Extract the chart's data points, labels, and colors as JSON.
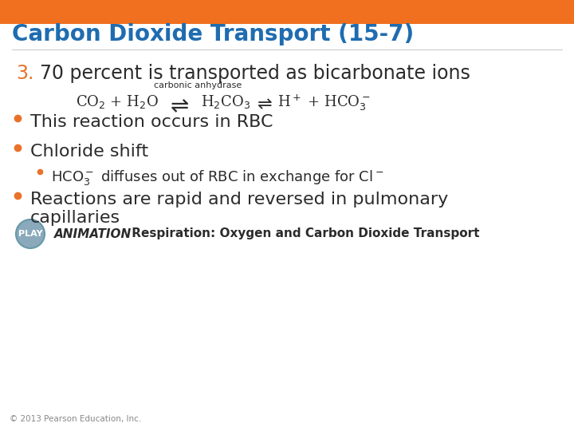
{
  "title": "Carbon Dioxide Transport (15-7)",
  "title_color": "#1F6CB0",
  "title_fontsize": 20,
  "header_bar_color": "#F07020",
  "background_color": "#FFFFFF",
  "number_color": "#E8722A",
  "bullet_color": "#E8722A",
  "text_color": "#2B2B2B",
  "item3_label": "3.",
  "item3_text": "70 percent is transported as bicarbonate ions",
  "bullet1": "This reaction occurs in RBC",
  "bullet2": "Chloride shift",
  "bullet3_line1": "Reactions are rapid and reversed in pulmonary",
  "bullet3_line2": "capillaries",
  "play_text": "PLAY",
  "animation_text": "ANIMATION",
  "animation_rest": " Respiration: Oxygen and Carbon Dioxide Transport",
  "copyright": "© 2013 Pearson Education, Inc.",
  "equation_label": "carbonic anhydrase",
  "play_btn_color": "#8AAABB",
  "footer_color": "#888888",
  "separator_color": "#CCCCCC"
}
